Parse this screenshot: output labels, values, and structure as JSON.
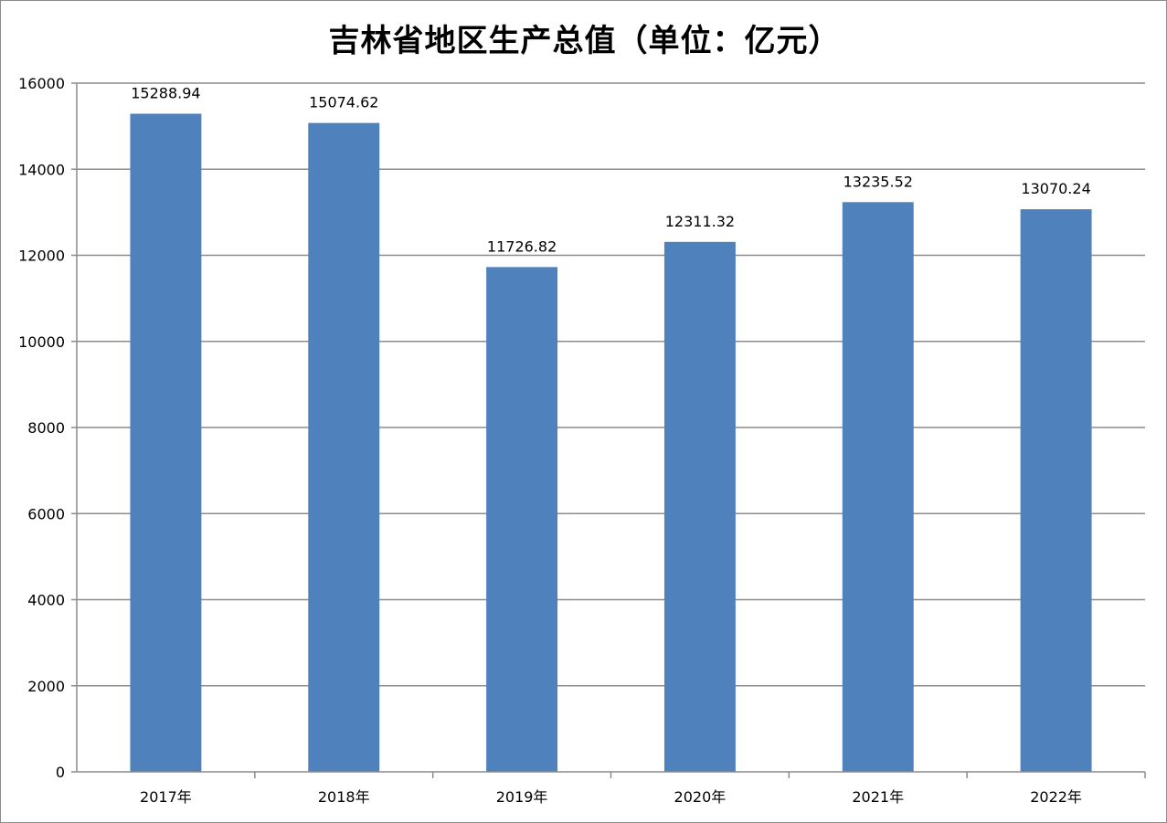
{
  "chart_data": {
    "type": "bar",
    "title": "吉林省地区生产总值（单位：亿元）",
    "categories": [
      "2017年",
      "2018年",
      "2019年",
      "2020年",
      "2021年",
      "2022年"
    ],
    "values": [
      15288.94,
      15074.62,
      11726.82,
      12311.32,
      13235.52,
      13070.24
    ],
    "data_labels": [
      "15288.94",
      "15074.62",
      "11726.82",
      "12311.32",
      "13235.52",
      "13070.24"
    ],
    "yticks": [
      "0",
      "2000",
      "4000",
      "6000",
      "8000",
      "10000",
      "12000",
      "14000",
      "16000"
    ],
    "ylim": [
      0,
      16000
    ],
    "xlabel": "",
    "ylabel": "",
    "grid": true,
    "legend": "none",
    "bar_color": "#4f81bd",
    "grid_color": "#8c8c8c"
  }
}
